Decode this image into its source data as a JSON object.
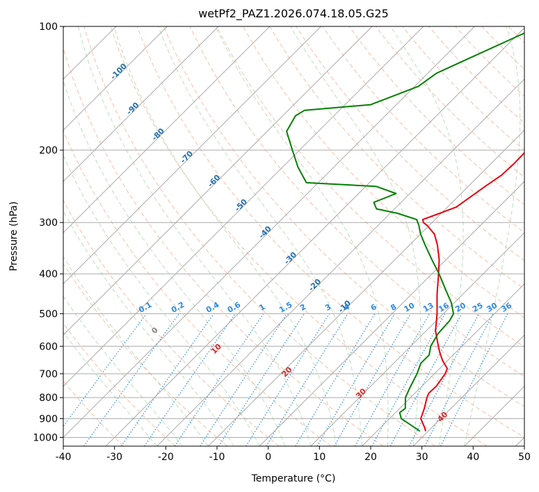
{
  "chart_data": {
    "type": "line",
    "title": "wetPf2_PAZ1.2026.074.18.05.G25",
    "xlabel": "Temperature (°C)",
    "ylabel": "Pressure (hPa)",
    "xlim": [
      -40,
      50
    ],
    "ylim": [
      1050,
      100
    ],
    "y_scale": "log",
    "grid": true,
    "x_ticks": [
      "-40",
      "-30",
      "-20",
      "-10",
      "0",
      "10",
      "20",
      "30",
      "40",
      "50"
    ],
    "y_ticks": [
      "100",
      "200",
      "300",
      "400",
      "500",
      "600",
      "700",
      "800",
      "900",
      "1000"
    ],
    "isotherm_labels": [
      {
        "label": "-100",
        "temp": -100
      },
      {
        "label": "-90",
        "temp": -90
      },
      {
        "label": "-80",
        "temp": -80
      },
      {
        "label": "-70",
        "temp": -70
      },
      {
        "label": "-60",
        "temp": -60
      },
      {
        "label": "-50",
        "temp": -50
      },
      {
        "label": "-40",
        "temp": -40
      },
      {
        "label": "-30",
        "temp": -30
      },
      {
        "label": "-20",
        "temp": -20
      },
      {
        "label": "-10",
        "temp": -10
      }
    ],
    "mixing_ratio_labels": [
      "0.1",
      "0.2",
      "0.4",
      "0.6",
      "1",
      "1.5",
      "2",
      "3",
      "4",
      "6",
      "8",
      "10",
      "13",
      "16",
      "20",
      "25",
      "30",
      "36"
    ],
    "mixing_ratio_values": [
      0.1,
      0.2,
      0.4,
      0.6,
      1,
      1.5,
      2,
      3,
      4,
      6,
      8,
      10,
      13,
      16,
      20,
      25,
      30,
      36
    ],
    "dry_adiabat_labels": [
      {
        "label": "0",
        "temp": 0
      },
      {
        "label": "10",
        "temp": 10
      },
      {
        "label": "20",
        "temp": 20
      },
      {
        "label": "30",
        "temp": 30
      },
      {
        "label": "40",
        "temp": 40
      }
    ],
    "series": [
      {
        "color": "#e8000b",
        "points": [
          [
            966,
            29.5
          ],
          [
            950,
            28.8
          ],
          [
            900,
            26.1
          ],
          [
            850,
            24.8
          ],
          [
            800,
            23.2
          ],
          [
            780,
            22.7
          ],
          [
            750,
            22.8
          ],
          [
            700,
            22.1
          ],
          [
            680,
            21.5
          ],
          [
            650,
            19.0
          ],
          [
            620,
            16.8
          ],
          [
            600,
            15.4
          ],
          [
            550,
            11.8
          ],
          [
            500,
            8.8
          ],
          [
            450,
            5.1
          ],
          [
            400,
            1.3
          ],
          [
            370,
            -1.3
          ],
          [
            340,
            -4.6
          ],
          [
            320,
            -7.3
          ],
          [
            305,
            -10.4
          ],
          [
            300,
            -11.7
          ],
          [
            295,
            -12.4
          ],
          [
            285,
            -10.3
          ],
          [
            275,
            -8.3
          ],
          [
            260,
            -7.5
          ],
          [
            245,
            -6.7
          ],
          [
            230,
            -5.7
          ],
          [
            215,
            -5.5
          ],
          [
            200,
            -5.6
          ],
          [
            185,
            -5.6
          ],
          [
            170,
            -7.4
          ],
          [
            150,
            -10.1
          ],
          [
            130,
            -14.0
          ],
          [
            115,
            -17.8
          ],
          [
            100,
            -18.4
          ]
        ]
      },
      {
        "color": "#008000",
        "points": [
          [
            966,
            28.4
          ],
          [
            950,
            27.0
          ],
          [
            900,
            22.3
          ],
          [
            870,
            20.8
          ],
          [
            850,
            21.1
          ],
          [
            800,
            19.0
          ],
          [
            760,
            18.0
          ],
          [
            700,
            16.6
          ],
          [
            660,
            15.3
          ],
          [
            630,
            15.3
          ],
          [
            600,
            13.9
          ],
          [
            560,
            12.9
          ],
          [
            520,
            12.6
          ],
          [
            500,
            12.0
          ],
          [
            470,
            9.4
          ],
          [
            440,
            6.1
          ],
          [
            400,
            1.4
          ],
          [
            370,
            -2.7
          ],
          [
            340,
            -7.0
          ],
          [
            320,
            -10.0
          ],
          [
            305,
            -12.0
          ],
          [
            295,
            -13.6
          ],
          [
            285,
            -18.5
          ],
          [
            278,
            -23.5
          ],
          [
            268,
            -25.3
          ],
          [
            255,
            -22.7
          ],
          [
            245,
            -28.0
          ],
          [
            240,
            -42.3
          ],
          [
            220,
            -47.0
          ],
          [
            200,
            -51.4
          ],
          [
            180,
            -56.2
          ],
          [
            165,
            -57.5
          ],
          [
            160,
            -56.8
          ],
          [
            155,
            -45.0
          ],
          [
            140,
            -39.3
          ],
          [
            130,
            -38.3
          ],
          [
            120,
            -35.0
          ],
          [
            100,
            -27.4
          ]
        ]
      }
    ]
  }
}
